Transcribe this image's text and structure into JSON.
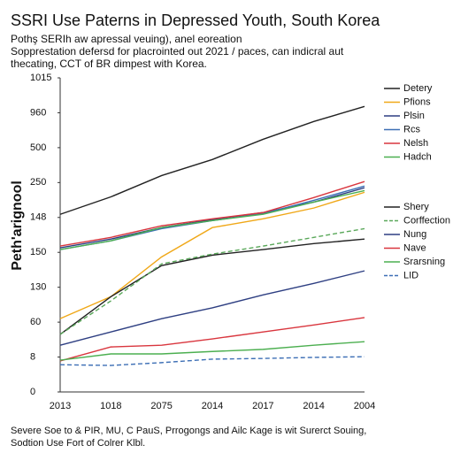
{
  "chart_data": {
    "type": "line",
    "title": "SSRI Use Paterns in Depressed Youth, South Korea",
    "subtitle": [
      "Pothş SERIh aw apressal veuing), anel eoreation",
      "Sopprestation defersd for placrointed out 2021 / paces, can indicral aut",
      "thecating, CCT of BR dimpest with Korea."
    ],
    "ylabel": "Peth'arignool",
    "footer": [
      "Severe Soe to & PIR, MU, C PauS, Prrogongs and Ailc Kage is wit Surerct Souing,",
      "Sodtion Use Fort of Colrer Klbl."
    ],
    "categories": [
      "2013",
      "1018",
      "2075",
      "2014",
      "2017",
      "2014",
      "2004"
    ],
    "ylim": [
      0,
      9
    ],
    "yticks": [
      {
        "value": 0,
        "label": "0"
      },
      {
        "value": 1,
        "label": "8"
      },
      {
        "value": 2,
        "label": "60"
      },
      {
        "value": 3,
        "label": "130"
      },
      {
        "value": 4,
        "label": "150"
      },
      {
        "value": 5,
        "label": "148"
      },
      {
        "value": 6,
        "label": "250"
      },
      {
        "value": 7,
        "label": "500"
      },
      {
        "value": 8,
        "label": "960"
      },
      {
        "value": 9,
        "label": "1015"
      }
    ],
    "series": [
      {
        "name": "Detery",
        "color": "#222222",
        "legend": 0,
        "dash": false,
        "values": [
          5.09,
          5.59,
          6.2,
          6.66,
          7.24,
          7.75,
          8.18
        ]
      },
      {
        "name": "Pfions",
        "color": "#f0a818",
        "legend": 0,
        "dash": false,
        "values": [
          2.1,
          2.73,
          3.87,
          4.71,
          4.96,
          5.27,
          5.72
        ]
      },
      {
        "name": "Plsin",
        "color": "#2e3f82",
        "legend": 0,
        "dash": false,
        "values": [
          4.13,
          4.38,
          4.71,
          4.94,
          5.14,
          5.44,
          5.85
        ]
      },
      {
        "name": "Rcs",
        "color": "#3d6fb5",
        "legend": 0,
        "dash": false,
        "values": [
          4.08,
          4.33,
          4.68,
          4.91,
          5.11,
          5.49,
          5.9
        ]
      },
      {
        "name": "Nelsh",
        "color": "#d9363e",
        "legend": 0,
        "dash": false,
        "values": [
          4.18,
          4.43,
          4.76,
          4.96,
          5.14,
          5.57,
          6.03
        ]
      },
      {
        "name": "Hadch",
        "color": "#4caf50",
        "legend": 0,
        "dash": false,
        "values": [
          4.08,
          4.33,
          4.71,
          4.91,
          5.09,
          5.44,
          5.77
        ]
      },
      {
        "name": "Shery",
        "color": "#222222",
        "legend": 1,
        "dash": false,
        "values": [
          1.65,
          2.73,
          3.62,
          3.92,
          4.08,
          4.25,
          4.38
        ]
      },
      {
        "name": "Corffection",
        "color": "#5aa85a",
        "legend": 1,
        "dash": true,
        "values": [
          1.65,
          2.61,
          3.67,
          3.95,
          4.18,
          4.43,
          4.68
        ]
      },
      {
        "name": "Nung",
        "color": "#2e3f82",
        "legend": 1,
        "dash": false,
        "values": [
          1.34,
          1.72,
          2.1,
          2.41,
          2.78,
          3.11,
          3.47
        ]
      },
      {
        "name": "Nave",
        "color": "#d9363e",
        "legend": 1,
        "dash": false,
        "values": [
          0.89,
          1.29,
          1.34,
          1.52,
          1.72,
          1.92,
          2.13
        ]
      },
      {
        "name": "Srarsning",
        "color": "#4caf50",
        "legend": 1,
        "dash": false,
        "values": [
          0.91,
          1.09,
          1.09,
          1.16,
          1.22,
          1.34,
          1.44
        ]
      },
      {
        "name": "LID",
        "color": "#3d6fb5",
        "legend": 1,
        "dash": true,
        "values": [
          0.78,
          0.76,
          0.84,
          0.94,
          0.96,
          0.99,
          1.01
        ]
      }
    ]
  }
}
